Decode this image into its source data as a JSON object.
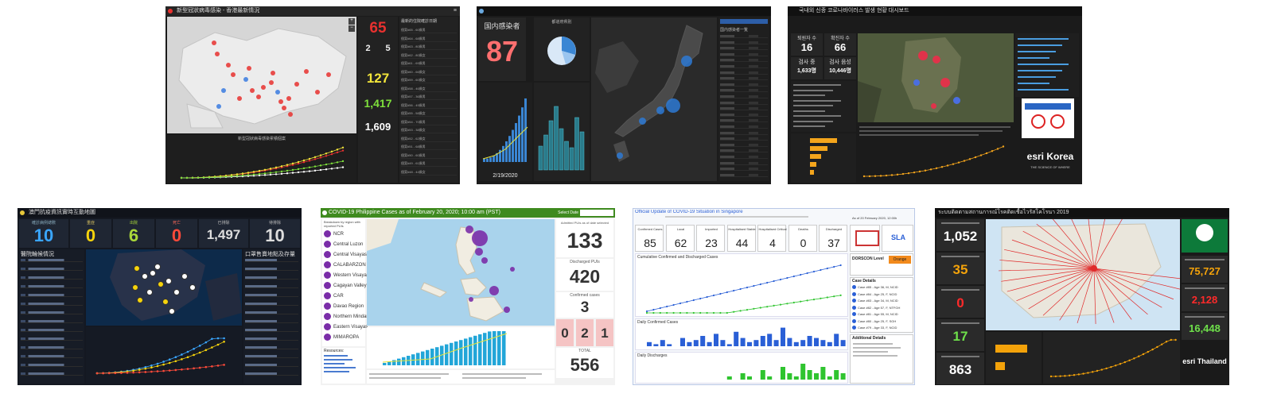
{
  "hk": {
    "title": "新型冠狀病毒感染 - 香港最新情況",
    "big_total": "65",
    "small_a": "2",
    "small_b": "5",
    "stat_yellow": "127",
    "stat_green": "1,417",
    "stat_white": "1,609",
    "chart_title": "新型冠狀病毒感染累積個案",
    "list_header": "最新的住院確診日期",
    "rows": [
      "個案#65 - 60歲男",
      "個案#64 - 68歲男",
      "個案#63 - 80歲男",
      "個案#62 - 80歲女",
      "個案#61 - 69歲男",
      "個案#60 - 66歲女",
      "個案#59 - 60歲女",
      "個案#58 - 46歲女",
      "個案#57 - 36歲男",
      "個案#56 - 49歲男",
      "個案#55 - 58歲女",
      "個案#54 - 70歲男",
      "個案#53 - 38歲女",
      "個案#52 - 62歲女",
      "個案#51 - 68歲男",
      "個案#50 - 60歲男",
      "個案#49 - 61歲男",
      "個案#48 - 44歲女"
    ],
    "colors": {
      "accent": "#e8312f",
      "yellow": "#f2e53a",
      "green": "#7ee03b"
    }
  },
  "jp": {
    "title": "国内感染者",
    "big_total": "87",
    "date": "2/19/2020",
    "side_header": "都道府県別",
    "list_title": "国内感染者一覧",
    "colors": {
      "accent": "#ff6f6f",
      "bubble": "#2d79d4"
    }
  },
  "kr": {
    "title": "국내외 신종 코로나바이러스 발생 현황 대시보드",
    "k1_label": "퇴원자 수",
    "k1_value": "16",
    "k2_label": "확진자 수",
    "k2_value": "66",
    "k3_label": "검사 중",
    "k3_value": "1,633명",
    "k4_label": "검사 음성",
    "k4_value": "10,446명",
    "brand": "esri Korea",
    "brand_sub": "THE SCIENCE OF WHERE",
    "colors": {
      "accent": "#f4a51c",
      "link": "#4a9de0"
    }
  },
  "mo": {
    "title": "澳門抗疫資訊實時互動地圖",
    "k1_label": "確診病例總數",
    "k1_value": "10",
    "k2_label": "重症",
    "k2_value": "0",
    "k3_label": "出院",
    "k3_value": "6",
    "k4_label": "死亡",
    "k4_value": "0",
    "k5_label": "已排除",
    "k5_value": "1,497",
    "k6_label": "待排除",
    "k6_value": "10",
    "left_title": "醫院輪候情況",
    "right_title": "口罩售賣地點及存量",
    "colors": {
      "blue": "#3aa6ff",
      "yellow": "#f5d30c",
      "red": "#ff4a3a",
      "green": "#a9d83a"
    }
  },
  "ph": {
    "title": "COVID-19 Philippine Cases as of February 20, 2020; 10:00 am (PST)",
    "select_label": "Select Date",
    "list_title": "Breakdown by region with reported PUIs",
    "regions": [
      "NCR",
      "Central Luzon",
      "Central Visayas",
      "CALABARZON",
      "Western Visayas",
      "Cagayan Valley",
      "CAR",
      "Davao Region",
      "Northern Mindanao",
      "Eastern Visayas",
      "MIMAROPA"
    ],
    "resources_title": "Resources:",
    "k1_label": "Admitted PUIs as of date selected",
    "k1_value": "133",
    "k2_label": "Discharged PUIs",
    "k2_value": "420",
    "k3_label": "Confirmed cases",
    "k3_value": "3",
    "s1": "0",
    "s2": "2",
    "s3": "1",
    "total_label": "TOTAL",
    "total_value": "556",
    "colors": {
      "header": "#3f8a1f",
      "dot": "#7a2da8",
      "bar": "#22a6d8"
    }
  },
  "sg": {
    "title": "Official Update of COVID-19 Situation in Singapore",
    "date": "As of 20 February 2020, 12:00h",
    "kpis": [
      {
        "label": "Confirmed Cases",
        "value": "85"
      },
      {
        "label": "Local",
        "value": "62"
      },
      {
        "label": "Imported",
        "value": "23"
      },
      {
        "label": "Hospitalised Stable",
        "value": "44"
      },
      {
        "label": "Hospitalised Critical",
        "value": "4"
      },
      {
        "label": "Deaths",
        "value": "0"
      },
      {
        "label": "Discharged",
        "value": "37"
      }
    ],
    "chart1_title": "Cumulative Confirmed and Discharged Cases",
    "chart2_title": "Daily Confirmed Cases",
    "chart3_title": "Daily Discharges",
    "dorscon_label": "DORSCON Level",
    "dorscon_value": "Orange",
    "case_details_title": "Case Details",
    "additional_title": "Additional Details",
    "case_rows": [
      "Case #85 - Age 36, M, NCID",
      "Case #84 - Age 25, F, NCID",
      "Case #83 - Age 34, M, NCID",
      "Case #82 - Age 57, F, NTFGH",
      "Case #81 - Age 55, M, NCID",
      "Case #80 - Age 25, F, SGH",
      "Case #79 - Age 33, F, NCID"
    ],
    "colors": {
      "blue": "#2a5fd6",
      "green": "#2fc42f",
      "orange": "#f28a1c"
    }
  },
  "th": {
    "title": "ระบบติดตามสถานการณ์โรคติดเชื้อไวรัสโคโรนา 2019",
    "left_values": [
      "1,052",
      "35",
      "0",
      "17",
      "863"
    ],
    "right_values": [
      "75,727",
      "2,128",
      "16,448"
    ],
    "brand": "esri Thailand",
    "colors": {
      "white": "#ffffff",
      "orange": "#f3a20a",
      "red": "#ff2a2a",
      "green": "#6ee04a"
    }
  }
}
